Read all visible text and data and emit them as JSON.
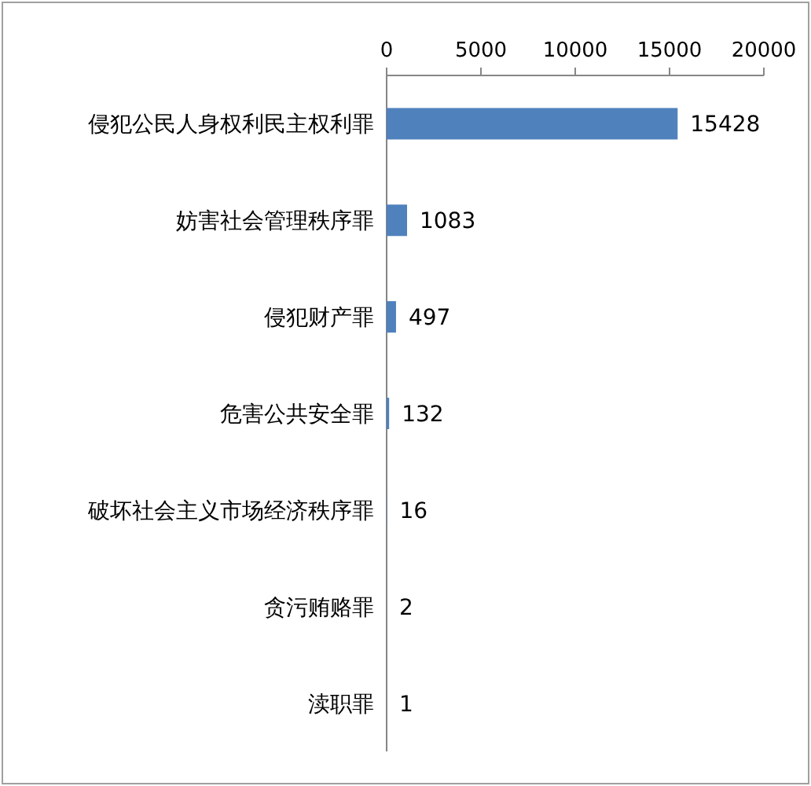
{
  "chart_data": {
    "type": "bar",
    "orientation": "horizontal",
    "categories": [
      "侵犯公民人身权利民主权利罪",
      "妨害社会管理秩序罪",
      "侵犯财产罪",
      "危害公共安全罪",
      "破坏社会主义市场经济秩序罪",
      "贪污贿赂罪",
      "渎职罪"
    ],
    "values": [
      15428,
      1083,
      497,
      132,
      16,
      2,
      1
    ],
    "color": "#4f81bd",
    "xlim": [
      0,
      20000
    ],
    "xticks": [
      0,
      5000,
      10000,
      15000,
      20000
    ],
    "data_labels": true,
    "grid": false
  }
}
